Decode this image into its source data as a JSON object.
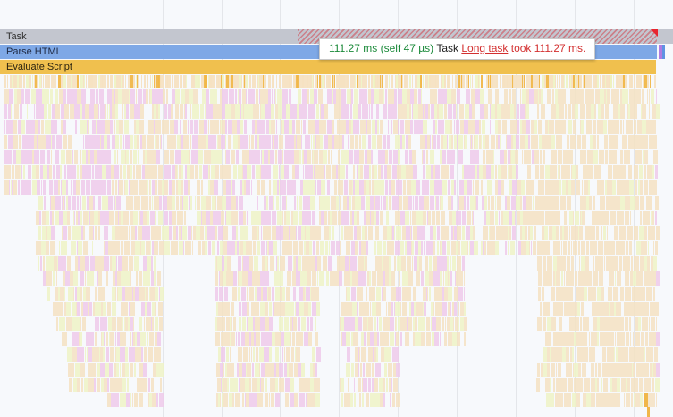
{
  "tracks": {
    "task": "Task",
    "parse_html": "Parse HTML",
    "evaluate_script": "Evaluate Script"
  },
  "tooltip": {
    "duration": "111.27 ms (self 47 µs)",
    "event_name": "Task",
    "warning_link": "Long task",
    "warning_text": "took 111.27 ms."
  },
  "colors": {
    "task": "#c3c6cf",
    "parse_html": "#7ea8e6",
    "evaluate_script": "#f0c04e",
    "long_task_warning": "#e8252f",
    "flame_cream": "#f5e2c2",
    "flame_pink": "#efcaea",
    "flame_yellow_green": "#eef3c6",
    "flame_orange": "#f0b74a"
  }
}
